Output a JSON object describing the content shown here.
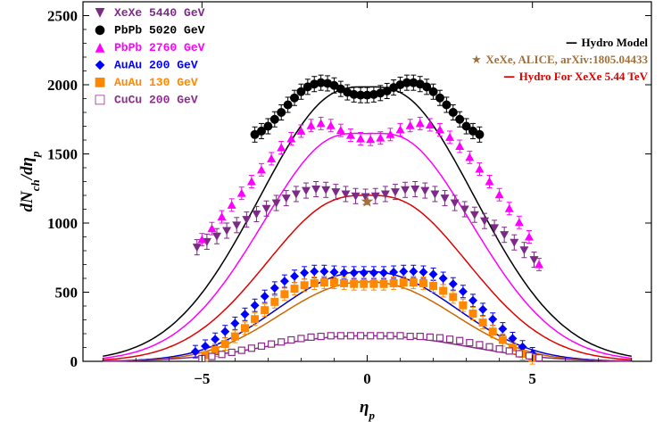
{
  "chart_data": {
    "type": "scatter",
    "xlabel": "ηp",
    "ylabel": "dNch/dηp",
    "xlim": [
      -8.6,
      8.6
    ],
    "ylim": [
      0,
      2600
    ],
    "xticks": [
      -5,
      0,
      5
    ],
    "yticks": [
      0,
      500,
      1000,
      1500,
      2000,
      2500
    ],
    "grid": false,
    "legend_left_placement": "top-left",
    "legend_right_placement": "top-right",
    "data_series": [
      {
        "name": "XeXe 5440 GeV",
        "color": "#7b2a86",
        "marker": "triangle-down",
        "err": 55,
        "x": [
          -5.15,
          -4.85,
          -4.55,
          -4.25,
          -3.95,
          -3.65,
          -3.35,
          -3.05,
          -2.75,
          -2.45,
          -2.15,
          -1.85,
          -1.55,
          -1.25,
          -0.95,
          -0.65,
          -0.35,
          -0.05,
          0.25,
          0.55,
          0.85,
          1.15,
          1.45,
          1.75,
          2.05,
          2.35,
          2.65,
          2.95,
          3.25,
          3.55,
          3.85,
          4.15,
          4.45,
          4.75,
          5.05
        ],
        "y": [
          825,
          865,
          905,
          945,
          985,
          1025,
          1065,
          1105,
          1145,
          1180,
          1210,
          1235,
          1245,
          1240,
          1225,
          1210,
          1195,
          1190,
          1195,
          1210,
          1225,
          1240,
          1245,
          1235,
          1210,
          1180,
          1145,
          1100,
          1060,
          1015,
          965,
          915,
          860,
          805,
          735
        ]
      },
      {
        "name": "PbPb 5020 GeV",
        "color": "#000000",
        "marker": "circle",
        "err": 55,
        "x": [
          -3.4,
          -3.2,
          -3.0,
          -2.8,
          -2.6,
          -2.4,
          -2.2,
          -2.0,
          -1.8,
          -1.6,
          -1.4,
          -1.2,
          -1.0,
          -0.8,
          -0.6,
          -0.4,
          -0.2,
          0.0,
          0.2,
          0.4,
          0.6,
          0.8,
          1.0,
          1.2,
          1.4,
          1.6,
          1.8,
          2.0,
          2.2,
          2.4,
          2.6,
          2.8,
          3.0,
          3.2,
          3.4
        ],
        "y": [
          1640,
          1665,
          1700,
          1750,
          1800,
          1855,
          1905,
          1950,
          1985,
          2005,
          2015,
          2010,
          1995,
          1970,
          1945,
          1930,
          1925,
          1925,
          1930,
          1940,
          1955,
          1980,
          2000,
          2015,
          2015,
          2005,
          1985,
          1950,
          1905,
          1855,
          1800,
          1750,
          1700,
          1665,
          1640
        ]
      },
      {
        "name": "PbPb 2760 GeV",
        "color": "#ff00ff",
        "marker": "triangle-up",
        "err": 45,
        "x": [
          -5.0,
          -4.7,
          -4.4,
          -4.1,
          -3.8,
          -3.5,
          -3.2,
          -2.9,
          -2.6,
          -2.3,
          -2.0,
          -1.7,
          -1.4,
          -1.1,
          -0.8,
          -0.5,
          -0.2,
          0.1,
          0.4,
          0.7,
          1.0,
          1.3,
          1.6,
          1.9,
          2.2,
          2.5,
          2.8,
          3.1,
          3.4,
          3.7,
          4.0,
          4.3,
          4.6,
          4.9,
          5.2
        ],
        "y": [
          880,
          960,
          1045,
          1130,
          1215,
          1300,
          1385,
          1465,
          1545,
          1610,
          1665,
          1705,
          1720,
          1705,
          1670,
          1635,
          1610,
          1605,
          1615,
          1640,
          1675,
          1705,
          1720,
          1710,
          1675,
          1620,
          1555,
          1475,
          1390,
          1300,
          1205,
          1105,
          1005,
          900,
          700
        ]
      },
      {
        "name": "AuAu 200 GeV",
        "color": "#0000ff",
        "marker": "diamond",
        "err": 45,
        "x": [
          -5.2,
          -4.9,
          -4.6,
          -4.3,
          -4.0,
          -3.7,
          -3.4,
          -3.1,
          -2.8,
          -2.5,
          -2.2,
          -1.9,
          -1.6,
          -1.3,
          -1.0,
          -0.7,
          -0.4,
          -0.1,
          0.2,
          0.5,
          0.8,
          1.1,
          1.4,
          1.7,
          2.0,
          2.3,
          2.6,
          2.9,
          3.2,
          3.5,
          3.8,
          4.1,
          4.4,
          4.7,
          5.0
        ],
        "y": [
          70,
          110,
          160,
          215,
          275,
          340,
          405,
          470,
          530,
          580,
          615,
          640,
          650,
          650,
          645,
          640,
          640,
          640,
          640,
          640,
          645,
          650,
          650,
          645,
          630,
          600,
          560,
          505,
          440,
          375,
          305,
          235,
          165,
          105,
          55
        ]
      },
      {
        "name": "AuAu 130 GeV",
        "color": "#ff8800",
        "marker": "square",
        "err": 45,
        "x": [
          -4.9,
          -4.6,
          -4.3,
          -4.0,
          -3.7,
          -3.4,
          -3.1,
          -2.8,
          -2.5,
          -2.2,
          -1.9,
          -1.6,
          -1.3,
          -1.0,
          -0.7,
          -0.4,
          -0.1,
          0.2,
          0.5,
          0.8,
          1.1,
          1.4,
          1.7,
          2.0,
          2.3,
          2.6,
          2.9,
          3.2,
          3.5,
          3.8,
          4.1,
          4.4,
          4.7,
          5.0
        ],
        "y": [
          45,
          80,
          125,
          180,
          240,
          305,
          370,
          430,
          485,
          525,
          550,
          565,
          570,
          570,
          565,
          560,
          560,
          560,
          560,
          565,
          570,
          570,
          565,
          545,
          510,
          465,
          405,
          345,
          280,
          215,
          155,
          100,
          55,
          25
        ]
      },
      {
        "name": "CuCu 200 GeV",
        "color": "#8b2d8b",
        "marker": "square-open",
        "err": 20,
        "x": [
          -5.0,
          -4.7,
          -4.4,
          -4.1,
          -3.8,
          -3.5,
          -3.2,
          -2.9,
          -2.6,
          -2.3,
          -2.0,
          -1.7,
          -1.4,
          -1.1,
          -0.8,
          -0.5,
          -0.2,
          0.1,
          0.4,
          0.7,
          1.0,
          1.3,
          1.6,
          1.9,
          2.2,
          2.5,
          2.8,
          3.1,
          3.4,
          3.7,
          4.0,
          4.3,
          4.6,
          4.9,
          5.2
        ],
        "y": [
          20,
          35,
          50,
          65,
          80,
          95,
          110,
          125,
          140,
          155,
          165,
          175,
          180,
          185,
          185,
          185,
          185,
          185,
          185,
          185,
          185,
          180,
          180,
          175,
          170,
          160,
          150,
          135,
          120,
          105,
          90,
          75,
          55,
          40,
          25
        ]
      }
    ],
    "model_lines": [
      {
        "name": "Hydro Model",
        "color": "#000000",
        "center": 2050,
        "width": 4.25,
        "dip_depth": 0.04,
        "dip_width": 1.2
      },
      {
        "name": "Hydro Model",
        "color": "#ff00ff",
        "center": 1730,
        "width": 4.1,
        "dip_depth": 0.06,
        "dip_width": 1.2
      },
      {
        "name": "Hydro For XeXe 5.44 TeV",
        "color": "#e00000",
        "center": 1240,
        "width": 3.95,
        "dip_depth": 0.04,
        "dip_width": 1.2
      },
      {
        "name": "Hydro Model",
        "color": "#0000cc",
        "center": 650,
        "width": 3.6,
        "dip_depth": 0.0,
        "dip_width": 1.2
      },
      {
        "name": "Hydro Model",
        "color": "#cc6600",
        "center": 575,
        "width": 3.5,
        "dip_depth": 0.0,
        "dip_width": 1.2
      },
      {
        "name": "Hydro Model",
        "color": "#8b2d8b",
        "center": 185,
        "width": 4.0,
        "dip_depth": 0.0,
        "dip_width": 1.2
      }
    ],
    "alice_point": {
      "name": "XeXe, ALICE, arXiv:1805.04433",
      "color": "#a0703c",
      "x": 0,
      "y": 1155
    }
  },
  "legend_left": [
    {
      "symbol": "▼",
      "label": "XeXe 5440 GeV",
      "color": "#7b2a86"
    },
    {
      "symbol": "●",
      "label": "PbPb 5020 GeV",
      "color": "#000000"
    },
    {
      "symbol": "▲",
      "label": "PbPb 2760 GeV",
      "color": "#ff00ff"
    },
    {
      "symbol": "◆",
      "label": "AuAu 200 GeV",
      "color": "#0000ff"
    },
    {
      "symbol": "■",
      "label": "AuAu 130 GeV",
      "color": "#ff8800"
    },
    {
      "symbol": "□",
      "label": "CuCu 200 GeV",
      "color": "#8b2d8b"
    }
  ],
  "legend_right": [
    {
      "symbol": "—",
      "label": "Hydro Model",
      "color": "#000000",
      "text_color": "#000000"
    },
    {
      "symbol": "★",
      "label": "XeXe, ALICE, arXiv:1805.04433",
      "color": "#a0703c",
      "text_color": "#a0703c"
    },
    {
      "symbol": "—",
      "label": "Hydro For XeXe 5.44 TeV",
      "color": "#e00000",
      "text_color": "#e00000"
    }
  ]
}
